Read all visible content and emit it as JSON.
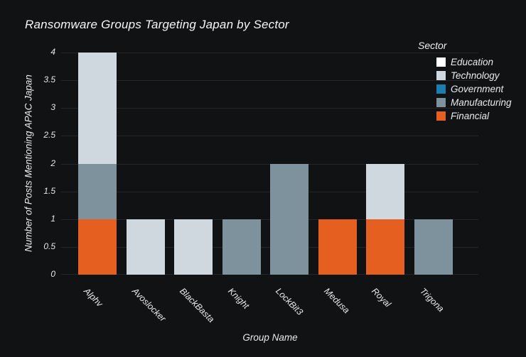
{
  "window": {
    "background": "#111214"
  },
  "chart_data": {
    "type": "bar",
    "stacked": true,
    "title": "Ransomware Groups Targeting Japan by Sector",
    "xlabel": "Group Name",
    "ylabel": "Number of Posts Mentioning APAC Japan",
    "ylim": [
      0,
      4
    ],
    "yticks": [
      "0",
      "0.5",
      "1",
      "1.5",
      "2",
      "2.5",
      "3",
      "3.5",
      "4"
    ],
    "grid": "horizontal",
    "categories": [
      "Alphv",
      "Avoslocker",
      "BlackBasta",
      "Knight",
      "LockBit3",
      "Medusa",
      "Royal",
      "Trigona"
    ],
    "series": [
      {
        "name": "Education",
        "color": "#ffffff",
        "values": [
          0,
          0,
          0,
          0,
          0,
          0,
          0,
          0
        ]
      },
      {
        "name": "Technology",
        "color": "#cfd8de",
        "values": [
          2,
          1,
          1,
          0,
          0,
          0,
          1,
          0
        ]
      },
      {
        "name": "Government",
        "color": "#1b7eb0",
        "values": [
          0,
          0,
          0,
          0,
          0,
          0,
          0,
          0
        ]
      },
      {
        "name": "Manufacturing",
        "color": "#7e929e",
        "values": [
          1,
          0,
          0,
          1,
          2,
          0,
          0,
          1
        ]
      },
      {
        "name": "Financial",
        "color": "#e55f20",
        "values": [
          1,
          0,
          0,
          0,
          0,
          1,
          1,
          0
        ]
      }
    ],
    "stack_order_bottom_to_top": [
      "Financial",
      "Manufacturing",
      "Government",
      "Technology",
      "Education"
    ],
    "legend": {
      "title": "Sector",
      "position": "top-right"
    },
    "colors": {
      "background": "#111214",
      "gridline": "#20262a",
      "text": "#e8ebed"
    }
  }
}
